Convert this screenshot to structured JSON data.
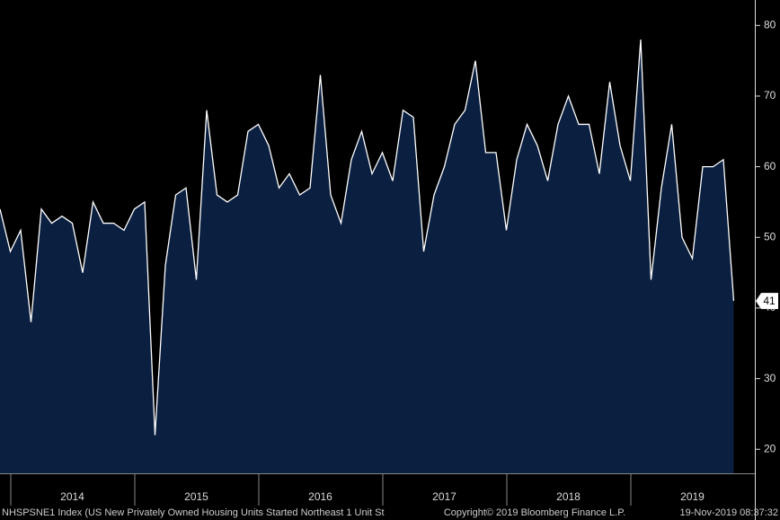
{
  "chart_data": {
    "type": "area",
    "values": [
      54,
      48,
      51,
      38,
      54,
      52,
      53,
      52,
      45,
      55,
      52,
      52,
      51,
      54,
      55,
      22,
      46,
      56,
      57,
      44,
      68,
      56,
      55,
      56,
      65,
      66,
      63,
      57,
      59,
      56,
      57,
      73,
      56,
      52,
      61,
      65,
      59,
      62,
      58,
      68,
      67,
      48,
      56,
      60,
      66,
      68,
      75,
      62,
      62,
      51,
      61,
      66,
      63,
      58,
      66,
      70,
      66,
      66,
      59,
      72,
      63,
      58,
      78,
      44,
      57,
      66,
      50,
      47,
      60,
      60,
      61,
      41
    ],
    "color": "#0b2040",
    "line_color": "#ffffff",
    "ylim": [
      16.6,
      83.6
    ],
    "yticks": [
      20,
      30,
      40,
      50,
      60,
      70,
      80
    ],
    "years": [
      "2014",
      "2015",
      "2016",
      "2017",
      "2018",
      "2019"
    ],
    "footer": {
      "left": "NHSPSNE1 Index (US New Privately Owned Housing Units Started Northeast 1 Unit St",
      "center": "Copyright© 2019 Bloomberg Finance L.P.",
      "right": "19-Nov-2019 08:37:32"
    }
  }
}
